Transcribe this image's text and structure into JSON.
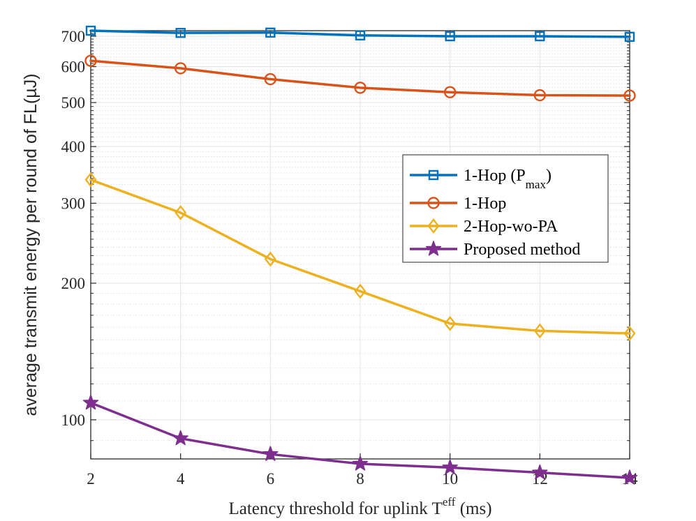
{
  "chart_data": {
    "type": "line",
    "y_scale": "log",
    "x": [
      2,
      4,
      6,
      8,
      10,
      12,
      14
    ],
    "xlim": [
      2,
      14
    ],
    "ylim": [
      82,
      720
    ],
    "xticks": [
      "2",
      "4",
      "6",
      "8",
      "10",
      "12",
      "14"
    ],
    "yticks": [
      100,
      200,
      300,
      400,
      500,
      600,
      700
    ],
    "ytick_labels": [
      "100",
      "200",
      "300",
      "400",
      "500",
      "600",
      "700"
    ],
    "grid": true,
    "xlabel": {
      "main": "Latency threshold for uplink T",
      "sup": "eff",
      "unit": " (ms)"
    },
    "ylabel": "average transmit energy per round of FL(µJ)",
    "legend_position": "center-right",
    "series": [
      {
        "name": "1-Hop (P",
        "name_sub": "max",
        "name_close": ")",
        "color": "#0072BD",
        "marker": "square",
        "values": [
          720,
          712,
          713,
          703,
          700,
          700,
          698
        ]
      },
      {
        "name": "1-Hop",
        "color": "#D95319",
        "marker": "circle",
        "values": [
          618,
          595,
          563,
          539,
          527,
          519,
          518
        ]
      },
      {
        "name": "2-Hop-wo-PA",
        "color": "#EDB120",
        "marker": "diamond",
        "values": [
          338,
          286,
          226,
          192,
          163,
          157,
          155
        ]
      },
      {
        "name": "Proposed method",
        "color": "#7E2F8E",
        "marker": "star",
        "values": [
          109,
          91,
          84,
          80,
          78.5,
          76.5,
          74.5
        ]
      }
    ]
  }
}
